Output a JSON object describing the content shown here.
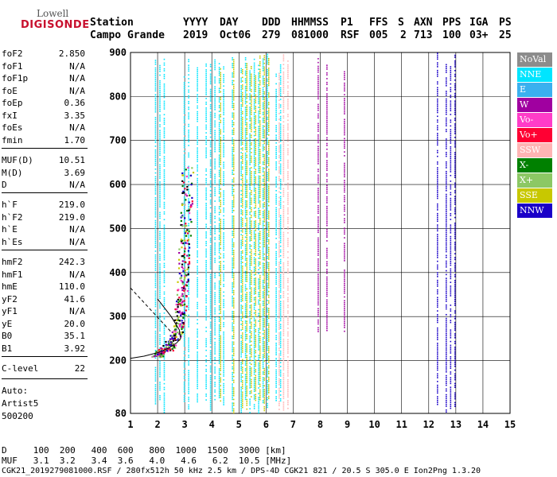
{
  "logo": {
    "line1": "Lowell",
    "line2": "DIGISONDE"
  },
  "header": {
    "labels": [
      "Station",
      "YYYY",
      "DAY",
      "DDD",
      "HHMMSS",
      "P1",
      "FFS",
      "S",
      "AXN",
      "PPS",
      "IGA",
      "PS"
    ],
    "values": [
      "Campo Grande",
      "2019",
      "Oct06",
      "279",
      "081000",
      "RSF",
      "005",
      "2",
      "713",
      "100",
      "03+",
      "25"
    ]
  },
  "params": [
    {
      "n": "foF2",
      "v": "2.850"
    },
    {
      "n": "foF1",
      "v": "N/A"
    },
    {
      "n": "foF1p",
      "v": "N/A"
    },
    {
      "n": "foE",
      "v": "N/A"
    },
    {
      "n": "foEp",
      "v": "0.36"
    },
    {
      "n": "fxI",
      "v": "3.35"
    },
    {
      "n": "foEs",
      "v": "N/A"
    },
    {
      "n": "fmin",
      "v": "1.70"
    },
    {
      "n": "MUF(D)",
      "v": "10.51"
    },
    {
      "n": "M(D)",
      "v": "3.69"
    },
    {
      "n": "D",
      "v": "N/A"
    },
    {
      "n": "h`F",
      "v": "219.0"
    },
    {
      "n": "h`F2",
      "v": "219.0"
    },
    {
      "n": "h`E",
      "v": "N/A"
    },
    {
      "n": "h`Es",
      "v": "N/A"
    },
    {
      "n": "hmF2",
      "v": "242.3"
    },
    {
      "n": "hmF1",
      "v": "N/A"
    },
    {
      "n": "hmE",
      "v": "110.0"
    },
    {
      "n": "yF2",
      "v": "41.6"
    },
    {
      "n": "yF1",
      "v": "N/A"
    },
    {
      "n": "yE",
      "v": "20.0"
    },
    {
      "n": "B0",
      "v": "35.1"
    },
    {
      "n": "B1",
      "v": "3.92"
    },
    {
      "n": "C-level",
      "v": "22"
    }
  ],
  "misc": {
    "auto": "Auto:",
    "artist": "Artist5",
    "code": "500200"
  },
  "footer": {
    "d_row": "D     100  200   400  600   800  1000  1500  3000 [km]",
    "muf_row": "MUF   3.1  3.2   3.4  3.6   4.0   4.6   6.2  10.5 [MHz]",
    "info": "CGK21_2019279081000.RSF / 280fx512h 50 kHz 2.5 km / DPS-4D CGK21 821 / 20.5 S 305.0 E Ion2Png 1.3.20"
  },
  "legend": [
    {
      "label": "NoVal",
      "color": "#8c8c8c"
    },
    {
      "label": "NNE",
      "color": "#00e5ff"
    },
    {
      "label": "E",
      "color": "#3ab0ef"
    },
    {
      "label": "W",
      "color": "#a000a0"
    },
    {
      "label": "Vo-",
      "color": "#ff3cc8"
    },
    {
      "label": "Vo+",
      "color": "#ff0033"
    },
    {
      "label": "SSW",
      "color": "#ffb4b4"
    },
    {
      "label": "X-",
      "color": "#008000"
    },
    {
      "label": "X+",
      "color": "#8cc864"
    },
    {
      "label": "SSE",
      "color": "#c8c800"
    },
    {
      "label": "NNW",
      "color": "#1a00c8"
    }
  ],
  "chart_data": {
    "type": "scatter",
    "xlim": [
      1,
      15
    ],
    "ylim": [
      80,
      900
    ],
    "xticks": [
      "1",
      "2",
      "3",
      "4",
      "5",
      "6",
      "7",
      "8",
      "9",
      "10",
      "11",
      "12",
      "13",
      "14",
      "15"
    ],
    "yticks": [
      "80",
      "200",
      "300",
      "400",
      "500",
      "600",
      "700",
      "800",
      "900"
    ],
    "grid": true,
    "curves": {
      "trace_x": [
        1.95,
        2.1,
        2.3,
        2.5,
        2.65,
        2.75,
        2.82,
        2.86,
        2.9,
        2.95,
        3.0,
        3.05,
        3.1
      ],
      "trace_y": [
        215,
        220,
        228,
        240,
        258,
        280,
        310,
        340,
        380,
        430,
        490,
        560,
        640
      ],
      "profile_x": [
        1.0,
        1.5,
        2.0,
        2.4,
        2.7,
        2.85,
        2.8,
        2.5,
        2.0
      ],
      "profile_y": [
        205,
        210,
        218,
        228,
        240,
        250,
        270,
        300,
        340
      ]
    },
    "bands": [
      {
        "x": [
          1.9,
          2.3
        ],
        "y": [
          80,
          900
        ],
        "color": "#00e5ff"
      },
      {
        "x": [
          2.8,
          6.6
        ],
        "y": [
          80,
          900
        ],
        "color": "#00e5ff"
      },
      {
        "x": [
          4.3,
          6.2
        ],
        "y": [
          80,
          900
        ],
        "color": "#c8c800"
      },
      {
        "x": [
          6.3,
          6.9
        ],
        "y": [
          80,
          900
        ],
        "color": "#ffb4b4"
      },
      {
        "x": [
          12.3,
          13.3
        ],
        "y": [
          80,
          900
        ],
        "color": "#1a00c8"
      },
      {
        "x": [
          7.9,
          8.9
        ],
        "y": [
          250,
          900
        ],
        "color": "#a000a0"
      }
    ]
  }
}
